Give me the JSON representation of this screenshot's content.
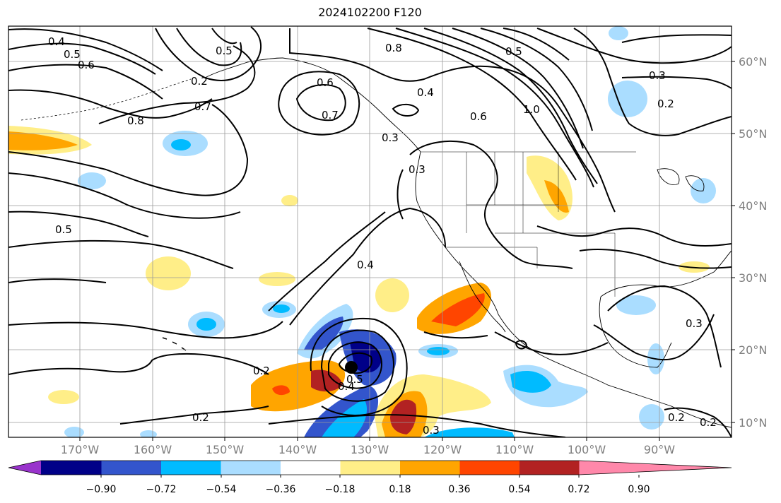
{
  "title": "2024102200 F120",
  "lat_labels": [
    "60°N",
    "50°N",
    "40°N",
    "30°N",
    "20°N",
    "10°N"
  ],
  "lon_labels": [
    "170°W",
    "160°W",
    "150°W",
    "140°W",
    "130°W",
    "120°W",
    "110°W",
    "100°W",
    "90°W"
  ],
  "colorbar": {
    "ticks": [
      "−0.90",
      "−0.72",
      "−0.54",
      "−0.36",
      "−0.18",
      "0.18",
      "0.36",
      "0.54",
      "0.72",
      "0.90"
    ],
    "colors": [
      "#9933cc",
      "#000088",
      "#3355cc",
      "#00bbff",
      "#aaddff",
      "#ffffff",
      "#ffee88",
      "#ffa500",
      "#ff4500",
      "#b22222",
      "#ff88aa"
    ]
  },
  "contour_labels": [
    "0.4",
    "0.5",
    "0.6",
    "0.8",
    "0.7",
    "0.2",
    "0.8",
    "0.5",
    "0.6",
    "0.7",
    "0.4",
    "0.3",
    "0.6",
    "1.0",
    "0.5",
    "0.3",
    "0.2",
    "0.3",
    "0.5",
    "0.4",
    "0.2",
    "0.5",
    "0.4",
    "0.2",
    "0.3",
    "0.2",
    "0.2",
    "0.3"
  ],
  "marker": "storm-center"
}
